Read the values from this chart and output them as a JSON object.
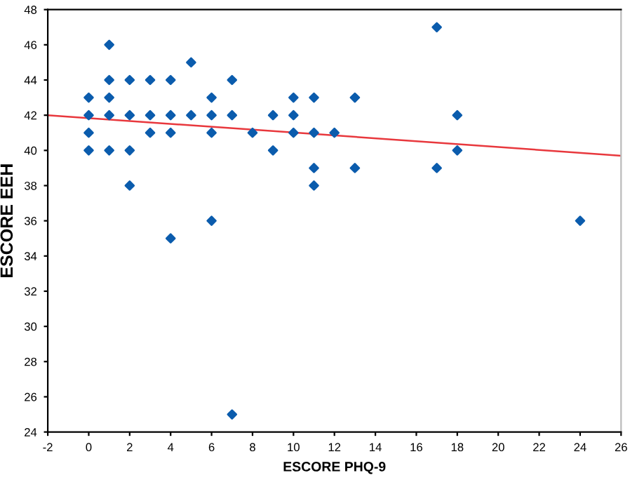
{
  "chart_data": {
    "type": "scatter",
    "xlabel": "ESCORE PHQ-9",
    "ylabel": "ESCORE EEH",
    "xlim": [
      -2,
      26
    ],
    "xticks": [
      -2,
      0,
      2,
      4,
      6,
      8,
      10,
      12,
      14,
      16,
      18,
      20,
      22,
      24,
      26
    ],
    "ylim": [
      24,
      48
    ],
    "yticks": [
      24,
      26,
      28,
      30,
      32,
      34,
      36,
      38,
      40,
      42,
      44,
      46,
      48
    ],
    "grid": false,
    "legend": false,
    "series": [
      {
        "marker": "diamond",
        "color": "#0b5cad",
        "x": [
          0,
          0,
          0,
          0,
          1,
          1,
          1,
          1,
          1,
          2,
          2,
          2,
          2,
          3,
          3,
          3,
          4,
          4,
          4,
          4,
          5,
          5,
          6,
          6,
          6,
          6,
          7,
          7,
          7,
          8,
          9,
          9,
          10,
          10,
          10,
          11,
          11,
          11,
          11,
          12,
          13,
          13,
          17,
          17,
          18,
          18,
          24
        ],
        "values": [
          43,
          42,
          41,
          40,
          46,
          44,
          43,
          42,
          40,
          44,
          42,
          40,
          38,
          44,
          42,
          41,
          44,
          42,
          41,
          35,
          45,
          42,
          43,
          42,
          41,
          36,
          44,
          42,
          25,
          41,
          42,
          40,
          43,
          42,
          41,
          43,
          41,
          39,
          38,
          41,
          43,
          39,
          47,
          39,
          42,
          40,
          36
        ]
      },
      {
        "type": "line",
        "marker": "none",
        "color": "#e8383d",
        "x": [
          -2,
          26
        ],
        "values": [
          42.0,
          39.7
        ]
      }
    ]
  }
}
